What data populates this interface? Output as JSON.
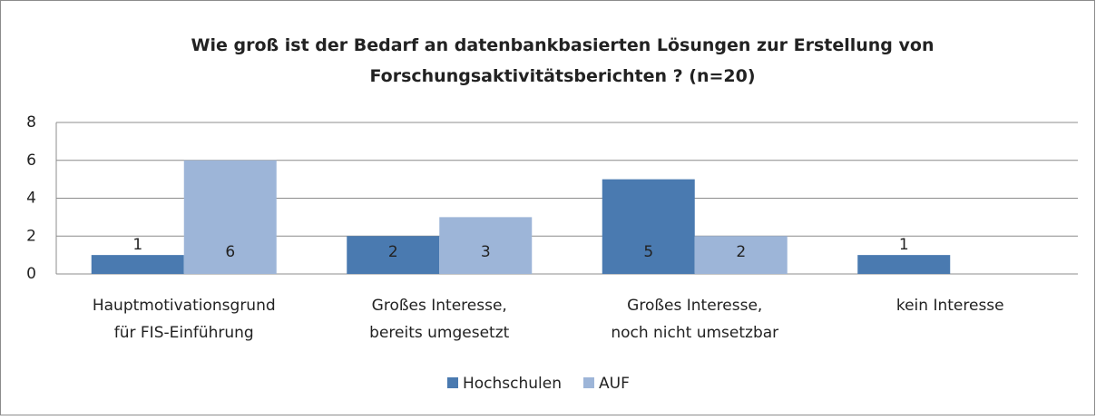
{
  "chart_data": {
    "type": "bar",
    "title": "Wie groß ist der Bedarf an datenbankbasierten Lösungen zur Erstellung von\nForschungsaktivitätsberichten ? (n=20)",
    "categories": [
      "Hauptmotivationsgrund\nfür FIS-Einführung",
      "Großes Interesse,\nbereits umgesetzt",
      "Großes Interesse,\nnoch nicht umsetzbar",
      "kein Interesse"
    ],
    "series": [
      {
        "name": "Hochschulen",
        "color": "#4a7ab0",
        "values": [
          1,
          2,
          5,
          1
        ]
      },
      {
        "name": "AUF",
        "color": "#9db5d8",
        "values": [
          6,
          3,
          2,
          null
        ]
      }
    ],
    "ylim": [
      0,
      8
    ],
    "yticks": [
      0,
      2,
      4,
      6,
      8
    ],
    "grid": true,
    "legend": "bottom"
  }
}
